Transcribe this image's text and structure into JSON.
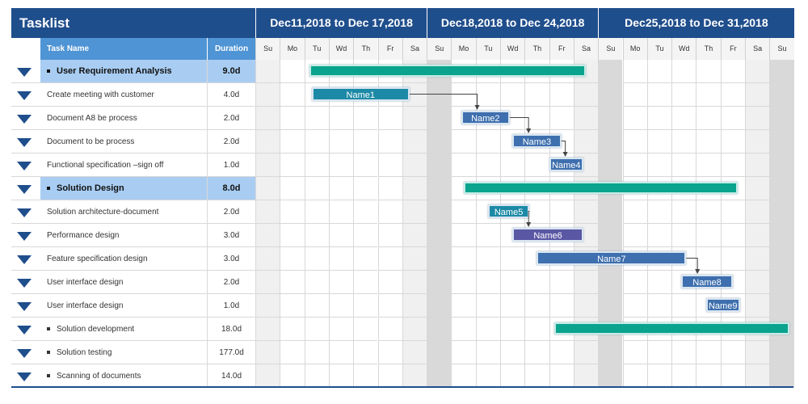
{
  "header": {
    "title": "Tasklist",
    "weeks": [
      "Dec11,2018 to Dec 17,2018",
      "Dec18,2018 to Dec 24,2018",
      "Dec25,2018 to Dec 31,2018"
    ],
    "col_task_name": "Task Name",
    "col_duration": "Duration",
    "days": [
      "Su",
      "Mo",
      "Tu",
      "Wd",
      "Th",
      "Fr",
      "Sa",
      "Su",
      "Mo",
      "Tu",
      "Wd",
      "Th",
      "Fr",
      "Sa",
      "Su",
      "Mo",
      "Tu",
      "Wd",
      "Th",
      "Fr",
      "Sa",
      "Su"
    ]
  },
  "rows": [
    {
      "name": "User Requirement Analysis",
      "duration": "9.0d",
      "summary": true,
      "bullet": true
    },
    {
      "name": "Create meeting with customer",
      "duration": "4.0d",
      "summary": false,
      "bullet": false
    },
    {
      "name": "Document A8 be process",
      "duration": "2.0d",
      "summary": false,
      "bullet": false
    },
    {
      "name": "Document to be  process",
      "duration": "2.0d",
      "summary": false,
      "bullet": false
    },
    {
      "name": "Functional specification –sign off",
      "duration": "1.0d",
      "summary": false,
      "bullet": false
    },
    {
      "name": "Solution Design",
      "duration": "8.0d",
      "summary": true,
      "bullet": true
    },
    {
      "name": "Solution architecture-document",
      "duration": "2.0d",
      "summary": false,
      "bullet": false
    },
    {
      "name": "Performance design",
      "duration": "3.0d",
      "summary": false,
      "bullet": false
    },
    {
      "name": "Feature specification design",
      "duration": "3.0d",
      "summary": false,
      "bullet": false
    },
    {
      "name": "User interface design",
      "duration": "2.0d",
      "summary": false,
      "bullet": false
    },
    {
      "name": "User interface design",
      "duration": "1.0d",
      "summary": false,
      "bullet": false
    },
    {
      "name": "Solution development",
      "duration": "18.0d",
      "summary": false,
      "bullet": true
    },
    {
      "name": "Solution testing",
      "duration": "177.0d",
      "summary": false,
      "bullet": true
    },
    {
      "name": "Scanning of documents",
      "duration": "14.0d",
      "summary": false,
      "bullet": true
    }
  ],
  "bars": [
    {
      "row": 0,
      "start": 2.2,
      "end": 13.5,
      "label": "",
      "color": "summary"
    },
    {
      "row": 1,
      "start": 2.3,
      "end": 6.3,
      "label": "Name1",
      "color": "teal"
    },
    {
      "row": 2,
      "start": 8.4,
      "end": 10.4,
      "label": "Name2",
      "color": "blue"
    },
    {
      "row": 3,
      "start": 10.5,
      "end": 12.5,
      "label": "Name3",
      "color": "blue"
    },
    {
      "row": 4,
      "start": 12.0,
      "end": 13.4,
      "label": "Name4",
      "color": "blue"
    },
    {
      "row": 5,
      "start": 8.5,
      "end": 19.7,
      "label": "",
      "color": "summary"
    },
    {
      "row": 6,
      "start": 9.5,
      "end": 11.2,
      "label": "Name5",
      "color": "teal"
    },
    {
      "row": 7,
      "start": 10.5,
      "end": 13.4,
      "label": "Name6",
      "color": "purple"
    },
    {
      "row": 8,
      "start": 11.5,
      "end": 17.6,
      "label": "Name7",
      "color": "blue"
    },
    {
      "row": 9,
      "start": 17.4,
      "end": 19.5,
      "label": "Name8",
      "color": "blue"
    },
    {
      "row": 10,
      "start": 18.4,
      "end": 19.8,
      "label": "Name9",
      "color": "blue"
    },
    {
      "row": 11,
      "start": 12.2,
      "end": 21.8,
      "label": "",
      "color": "summary"
    }
  ],
  "links": [
    {
      "from": 1,
      "to": 2
    },
    {
      "from": 2,
      "to": 3
    },
    {
      "from": 3,
      "to": 4
    },
    {
      "from": 6,
      "to": 7
    },
    {
      "from": 8,
      "to": 9
    }
  ]
}
